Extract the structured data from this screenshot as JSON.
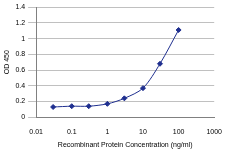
{
  "chart_data": {
    "type": "line",
    "x_label": "Recombinant Protein Concentration (ng/ml)",
    "y_label": "OD 450",
    "x": [
      0.03,
      0.1,
      0.3,
      1,
      3,
      10,
      30,
      100
    ],
    "values": [
      0.13,
      0.14,
      0.14,
      0.17,
      0.24,
      0.37,
      0.68,
      1.11
    ],
    "color": "#1f2f8f",
    "marker": "diamond",
    "log": "x",
    "xlim": [
      0.01,
      1000
    ],
    "xticks": [
      0.01,
      0.1,
      1,
      10,
      100,
      1000
    ],
    "ylim": [
      0,
      1.4
    ],
    "yticks": [
      0,
      0.2,
      0.4,
      0.6,
      0.8,
      1,
      1.2,
      1.4
    ],
    "grid": true
  }
}
